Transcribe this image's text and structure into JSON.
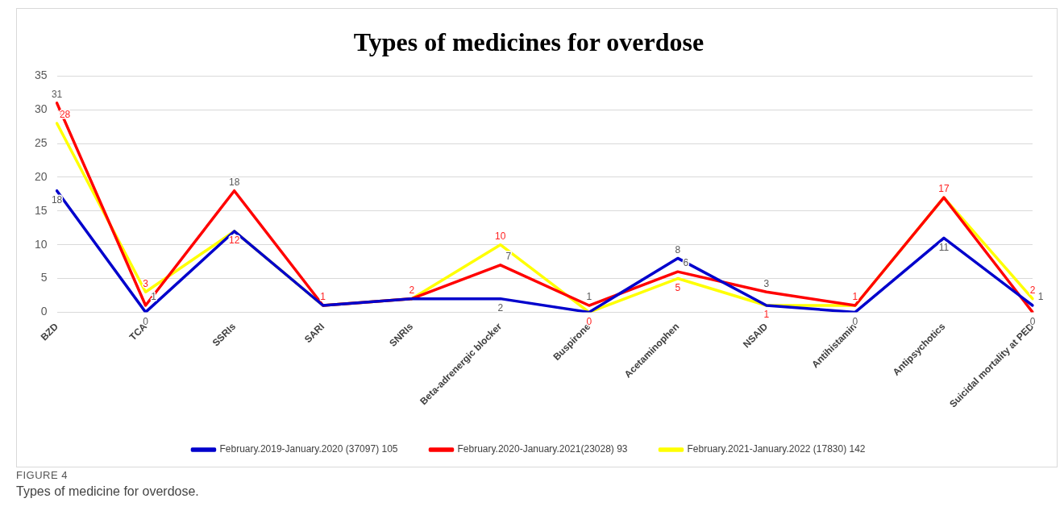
{
  "chart_data": {
    "type": "line",
    "title": "Types of medicines for overdose",
    "categories": [
      "BZD",
      "TCA",
      "SSRIs",
      "SARI",
      "SNRIs",
      "Beta-adrenergic blocker",
      "Buspirone",
      "Acetaminophen",
      "NSAID",
      "Antihistamin",
      "Antipsychotics",
      "Suicidal mortality at PED"
    ],
    "series": [
      {
        "name": "February.2019-January.2020 (37097) 105",
        "color": "#0000cc",
        "values": [
          18,
          0,
          12,
          1,
          2,
          2,
          0,
          8,
          1,
          0,
          11,
          1
        ],
        "value_labels": [
          "18",
          "0",
          null,
          null,
          null,
          "2",
          null,
          "8",
          null,
          "0",
          "11",
          "1"
        ]
      },
      {
        "name": "February.2020-January.2021(23028) 93",
        "color": "#ff0000",
        "values": [
          31,
          1,
          18,
          1,
          2,
          7,
          1,
          6,
          3,
          1,
          17,
          0
        ],
        "value_labels": [
          "31",
          "1",
          "18",
          null,
          null,
          "7",
          "1",
          "6",
          "3",
          null,
          null,
          "0"
        ]
      },
      {
        "name": "February.2021-January.2022 (17830) 142",
        "color": "#ffff00",
        "values": [
          28,
          3,
          12,
          1,
          2,
          10,
          0,
          5,
          1,
          1,
          17,
          2
        ],
        "value_labels": [
          "28",
          "3",
          "12",
          "1",
          "2",
          "10",
          "0",
          "5",
          "1",
          "1",
          "17",
          "2"
        ]
      }
    ],
    "ylim": [
      0,
      35
    ],
    "yticks": [
      0,
      5,
      10,
      15,
      20,
      25,
      30,
      35
    ],
    "grid": "y",
    "legend": "bottom",
    "marker": "none",
    "line_style": "solid",
    "annotations": [
      "FIGURE 4",
      "Types of medicine for overdose."
    ]
  }
}
